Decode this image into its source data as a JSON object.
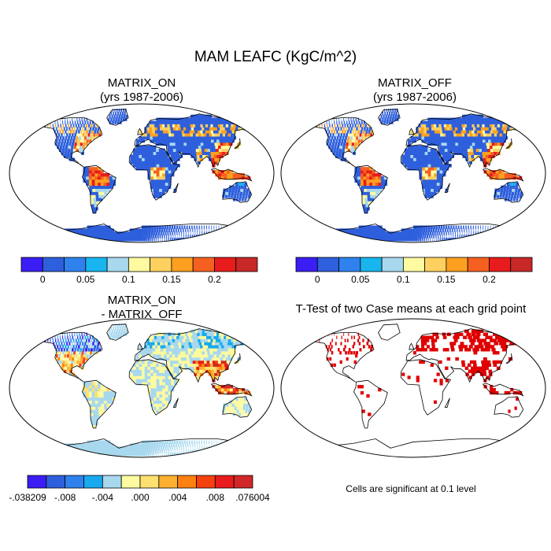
{
  "figure": {
    "title": "MAM LEAFC (KgC/m^2)"
  },
  "panels": [
    {
      "title": "MATRIX_ON\n(yrs 1987-2006)"
    },
    {
      "title": "MATRIX_OFF\n(yrs 1987-2006)"
    },
    {
      "title": "MATRIX_ON\n- MATRIX_OFF"
    },
    {
      "title": "T-Test of two Case means at each grid point"
    }
  ],
  "colorbars": {
    "absolute": {
      "colors": [
        "#3a1ef5",
        "#2e5fdc",
        "#2f82ee",
        "#18b5ee",
        "#a8d8ee",
        "#fdfaa0",
        "#fdd060",
        "#fda020",
        "#f56020",
        "#e81c1c",
        "#c82828"
      ],
      "labels": [
        "0",
        "0.05",
        "0.1",
        "0.15",
        "0.2"
      ],
      "label_after_box": [
        1,
        3,
        5,
        7,
        9
      ]
    },
    "difference": {
      "colors": [
        "#3a1ef5",
        "#2e5fdc",
        "#2f82ee",
        "#18a9ee",
        "#a8d8ee",
        "#fdfaa0",
        "#fde070",
        "#fdb030",
        "#fd8010",
        "#f54010",
        "#e81c1c",
        "#d02828"
      ],
      "labels": [
        "-.038209",
        "-.008",
        "-.004",
        ".000",
        ".004",
        ".008",
        ".076004"
      ],
      "label_at_edge": [
        0,
        2,
        4,
        6,
        8,
        10,
        12
      ]
    }
  },
  "ttest_note": "Cells are significant at 0.1 level",
  "ttest_color": "#e00000"
}
